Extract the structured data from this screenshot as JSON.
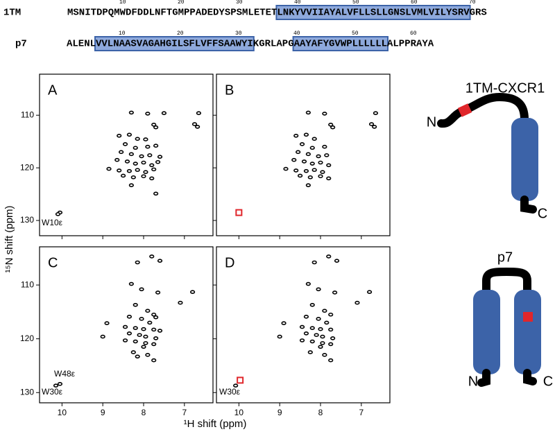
{
  "sequences": [
    {
      "name": "1TM",
      "ruler": [
        10,
        20,
        30,
        40,
        50,
        60,
        70
      ],
      "segments": [
        {
          "text": "MSNITDPQM",
          "boxed": false,
          "color": "#000000"
        },
        {
          "text": "W",
          "boxed": false,
          "color": "#e0262b"
        },
        {
          "text": "DFDDLNFTGMPPADEDYSPSMLETET",
          "boxed": false,
          "color": "#000000"
        },
        {
          "text": "LNKYVVIIAYALVFLLSLLGNSLVMLVILYSRV",
          "boxed": true,
          "color": "#000000"
        },
        {
          "text": "GRS",
          "boxed": false,
          "color": "#000000"
        }
      ]
    },
    {
      "name": "p7",
      "ruler": [
        10,
        20,
        30,
        40,
        50,
        60
      ],
      "segments": [
        {
          "text": "ALENL",
          "boxed": false,
          "color": "#000000"
        },
        {
          "text": "VVLNAASVAGAHGILSFLVFFSAAWYI",
          "boxed": true,
          "color": "#000000"
        },
        {
          "text": "KGRLAPG",
          "boxed": false,
          "color": "#000000"
        },
        {
          "text": "AAYAFYGV",
          "boxed": true,
          "color": "#000000"
        },
        {
          "text": "W",
          "boxed": true,
          "color": "#e0262b"
        },
        {
          "text": "PLLLLLL",
          "boxed": true,
          "color": "#000000"
        },
        {
          "text": "ALPPRAYA",
          "boxed": false,
          "color": "#000000"
        }
      ]
    }
  ],
  "figure": {
    "xlabel": "¹H shift (ppm)",
    "ylabel": "¹⁵N shift (ppm)"
  },
  "cartoons": [
    {
      "title": "1TM-CXCR1",
      "n_label": "N",
      "c_label": "C"
    },
    {
      "title": "p7",
      "n_label": "N",
      "c_label": "C"
    }
  ],
  "chart_data": [
    {
      "type": "scatter",
      "label": "A",
      "xlim": [
        10.55,
        6.3
      ],
      "ylim": [
        102.2,
        132.9
      ],
      "xticks": [
        10,
        9,
        8,
        7
      ],
      "yticks": [
        110,
        120,
        130
      ],
      "xticklabels": false,
      "yticklabels": true,
      "color": "#000000",
      "x": [
        8.3,
        7.9,
        7.5,
        6.65,
        7.75,
        7.7,
        6.75,
        6.68,
        8.6,
        8.35,
        8.15,
        7.95,
        8.45,
        8.2,
        7.9,
        7.7,
        8.55,
        8.3,
        8.05,
        7.85,
        7.6,
        8.65,
        8.4,
        8.2,
        8.0,
        7.8,
        7.65,
        8.85,
        8.6,
        8.35,
        8.15,
        7.95,
        7.75,
        8.5,
        8.25,
        8.0,
        7.8,
        8.3,
        7.7,
        10.05,
        10.1
      ],
      "y": [
        109.5,
        109.7,
        109.6,
        109.6,
        111.8,
        112.3,
        111.7,
        112.2,
        113.9,
        113.7,
        114.5,
        114.6,
        115.5,
        116.2,
        116.0,
        115.8,
        117.0,
        117.4,
        117.8,
        117.6,
        117.9,
        118.5,
        118.8,
        119.2,
        119.0,
        119.5,
        118.9,
        120.2,
        120.5,
        120.6,
        120.4,
        120.8,
        120.3,
        121.5,
        121.8,
        121.6,
        122.0,
        123.3,
        124.9,
        128.5,
        128.8
      ],
      "annotations": [
        "W10ε"
      ],
      "markers": []
    },
    {
      "type": "scatter",
      "label": "B",
      "xlim": [
        10.55,
        6.3
      ],
      "ylim": [
        102.2,
        132.9
      ],
      "xticks": [
        10,
        9,
        8,
        7
      ],
      "yticks": [
        110,
        120,
        130
      ],
      "xticklabels": false,
      "yticklabels": false,
      "color": "#000000",
      "x": [
        8.3,
        7.9,
        6.65,
        7.75,
        7.7,
        6.75,
        6.68,
        8.6,
        8.35,
        8.15,
        8.45,
        8.2,
        7.9,
        8.55,
        8.3,
        8.05,
        7.85,
        8.65,
        8.4,
        8.2,
        8.0,
        7.8,
        8.85,
        8.6,
        8.35,
        8.15,
        7.95,
        8.5,
        8.25,
        8.0,
        7.8,
        8.3
      ],
      "y": [
        109.5,
        109.7,
        109.6,
        111.8,
        112.3,
        111.7,
        112.2,
        113.9,
        113.7,
        114.5,
        115.5,
        116.2,
        116.0,
        117.0,
        117.4,
        117.8,
        117.6,
        118.5,
        118.8,
        119.2,
        119.0,
        119.5,
        120.2,
        120.5,
        120.6,
        120.4,
        120.8,
        121.5,
        121.8,
        121.6,
        122.0,
        123.3
      ],
      "annotations": [],
      "markers": [
        {
          "x": 10.0,
          "y": 128.5
        }
      ]
    },
    {
      "type": "scatter",
      "label": "C",
      "xlim": [
        10.55,
        6.3
      ],
      "ylim": [
        102.9,
        131.9
      ],
      "xticks": [
        10,
        9,
        8,
        7
      ],
      "yticks": [
        110,
        120,
        130
      ],
      "xticklabels": true,
      "yticklabels": true,
      "color": "#000000",
      "x": [
        7.8,
        8.15,
        7.6,
        8.3,
        8.05,
        7.65,
        6.8,
        7.1,
        8.2,
        7.9,
        7.75,
        7.7,
        8.35,
        8.05,
        7.85,
        8.9,
        8.45,
        8.2,
        8.0,
        7.75,
        7.6,
        8.35,
        8.1,
        7.95,
        7.7,
        9.0,
        8.45,
        8.2,
        7.95,
        7.75,
        8.0,
        8.25,
        7.9,
        7.75,
        8.15,
        10.05,
        10.15
      ],
      "y": [
        104.7,
        105.8,
        105.5,
        109.8,
        110.8,
        111.4,
        111.3,
        113.3,
        113.7,
        114.8,
        115.5,
        116.0,
        115.9,
        116.3,
        117.0,
        117.1,
        117.8,
        118.0,
        118.2,
        118.3,
        118.5,
        119.0,
        119.3,
        119.6,
        119.9,
        119.6,
        120.3,
        120.5,
        120.8,
        121.0,
        121.5,
        122.5,
        123.0,
        124.0,
        123.3,
        128.4,
        128.7
      ],
      "annotations": [
        "W48ε",
        "W30ε"
      ],
      "markers": []
    },
    {
      "type": "scatter",
      "label": "D",
      "xlim": [
        10.55,
        6.3
      ],
      "ylim": [
        102.9,
        131.9
      ],
      "xticks": [
        10,
        9,
        8,
        7
      ],
      "yticks": [
        110,
        120,
        130
      ],
      "xticklabels": true,
      "yticklabels": false,
      "color": "#000000",
      "x": [
        7.8,
        8.15,
        7.6,
        8.3,
        8.05,
        7.65,
        6.8,
        7.1,
        8.2,
        7.9,
        7.75,
        8.35,
        8.05,
        7.85,
        8.9,
        8.45,
        8.2,
        8.0,
        7.75,
        8.35,
        8.1,
        7.95,
        7.7,
        9.0,
        8.45,
        8.2,
        7.95,
        7.75,
        8.0,
        8.25,
        7.9,
        7.75,
        10.08
      ],
      "y": [
        104.7,
        105.8,
        105.5,
        109.8,
        110.8,
        111.4,
        111.3,
        113.3,
        113.7,
        114.8,
        115.5,
        115.9,
        116.3,
        117.0,
        117.1,
        117.8,
        118.0,
        118.2,
        118.3,
        119.0,
        119.3,
        119.6,
        119.9,
        119.6,
        120.3,
        120.5,
        120.8,
        121.0,
        121.5,
        122.5,
        123.0,
        124.0,
        128.7
      ],
      "annotations": [
        "W30ε"
      ],
      "markers": [
        {
          "x": 9.97,
          "y": 127.7
        }
      ]
    }
  ]
}
